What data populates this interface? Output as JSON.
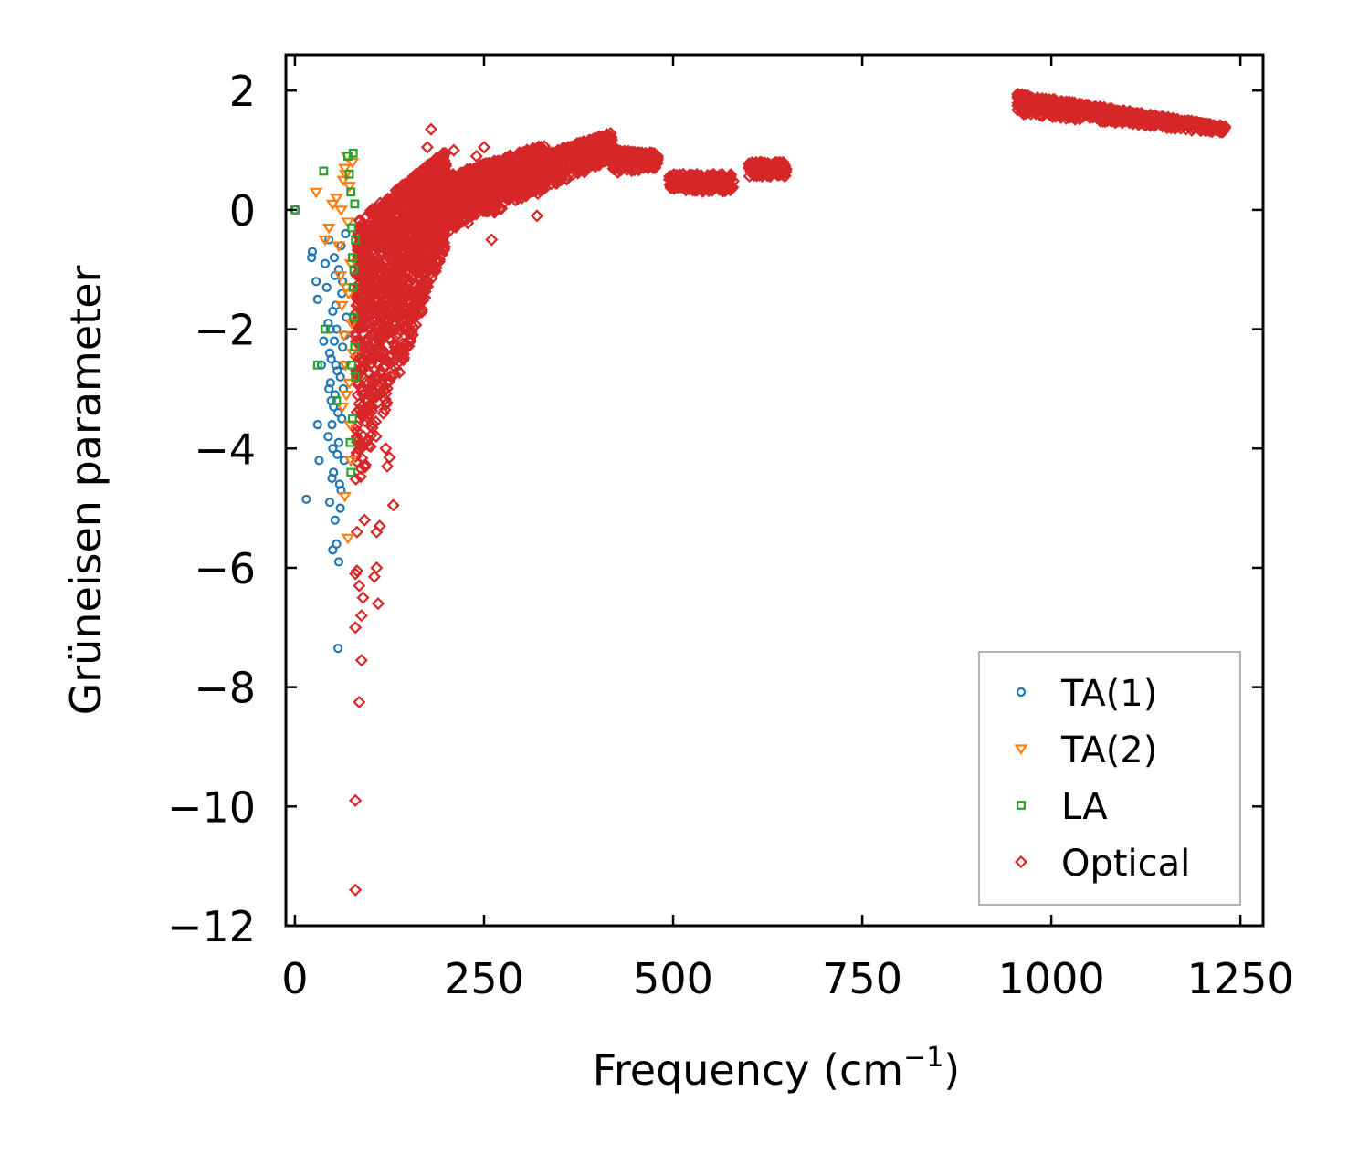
{
  "chart_data": {
    "type": "scatter",
    "title": "",
    "xlabel": "Frequency (cm",
    "xlabel_superscript": "−1",
    "xlabel_suffix": ")",
    "ylabel": "Grüneisen parameter",
    "xlim": [
      -12,
      1280
    ],
    "ylim": [
      -12.0,
      2.6
    ],
    "x_ticks": [
      0,
      250,
      500,
      750,
      1000,
      1250
    ],
    "x_tick_labels": [
      "0",
      "250",
      "500",
      "750",
      "1000",
      "1250"
    ],
    "y_ticks": [
      2,
      0,
      -2,
      -4,
      -6,
      -8,
      -10,
      -12
    ],
    "y_tick_labels": [
      "2",
      "0",
      "−2",
      "−4",
      "−6",
      "−8",
      "−10",
      "−12"
    ],
    "grid": false,
    "legend_position": "bottom-right",
    "series": [
      {
        "name": "TA(1)",
        "color": "#1f77b4",
        "marker": "circle",
        "points": [
          [
            0,
            0
          ],
          [
            22,
            -0.8
          ],
          [
            23,
            -0.7
          ],
          [
            28,
            -1.2
          ],
          [
            30,
            -1.5
          ],
          [
            35,
            -2.6
          ],
          [
            38,
            -2.2
          ],
          [
            40,
            -0.9
          ],
          [
            42,
            -1.3
          ],
          [
            44,
            -1.9
          ],
          [
            45,
            -0.5
          ],
          [
            46,
            -2.4
          ],
          [
            47,
            -2.9
          ],
          [
            48,
            -3.2
          ],
          [
            49,
            -3.6
          ],
          [
            50,
            -4.0
          ],
          [
            51,
            -4.4
          ],
          [
            52,
            -0.8
          ],
          [
            53,
            -1.1
          ],
          [
            54,
            -1.6
          ],
          [
            55,
            -2.0
          ],
          [
            56,
            -2.7
          ],
          [
            57,
            -3.4
          ],
          [
            58,
            -3.9
          ],
          [
            59,
            -4.6
          ],
          [
            60,
            -5.0
          ],
          [
            61,
            -0.6
          ],
          [
            62,
            -1.4
          ],
          [
            63,
            -2.3
          ],
          [
            64,
            -3.0
          ],
          [
            65,
            -4.2
          ],
          [
            66,
            -2.1
          ],
          [
            67,
            -0.4
          ],
          [
            68,
            -1.8
          ],
          [
            44,
            -3.8
          ],
          [
            46,
            -4.9
          ],
          [
            50,
            -5.7
          ],
          [
            55,
            -5.6
          ],
          [
            58,
            -5.9
          ],
          [
            57,
            -7.35
          ],
          [
            30,
            -3.6
          ],
          [
            32,
            -4.2
          ],
          [
            15,
            -4.85
          ],
          [
            48,
            -2.5
          ],
          [
            52,
            -2.2
          ],
          [
            53,
            -3.1
          ],
          [
            56,
            -4.1
          ],
          [
            60,
            -2.8
          ],
          [
            62,
            -3.5
          ],
          [
            58,
            -1.0
          ],
          [
            50,
            -1.7
          ],
          [
            47,
            -2.0
          ],
          [
            54,
            -2.6
          ],
          [
            51,
            -3.3
          ],
          [
            49,
            -4.5
          ],
          [
            53,
            -5.2
          ],
          [
            61,
            -4.7
          ],
          [
            45,
            -3.0
          ],
          [
            63,
            -1.2
          ],
          [
            64,
            -2.6
          ]
        ]
      },
      {
        "name": "TA(2)",
        "color": "#ff7f0e",
        "marker": "triangle-down",
        "points": [
          [
            28,
            0.3
          ],
          [
            40,
            -0.5
          ],
          [
            45,
            -0.3
          ],
          [
            50,
            0.1
          ],
          [
            55,
            0.2
          ],
          [
            58,
            -0.6
          ],
          [
            60,
            -1.1
          ],
          [
            62,
            -1.6
          ],
          [
            64,
            0.5
          ],
          [
            65,
            -2.1
          ],
          [
            66,
            0.7
          ],
          [
            67,
            -2.6
          ],
          [
            68,
            -3.1
          ],
          [
            69,
            0.9
          ],
          [
            70,
            -0.2
          ],
          [
            71,
            -1.4
          ],
          [
            72,
            0.4
          ],
          [
            73,
            -3.6
          ],
          [
            74,
            -4.2
          ],
          [
            75,
            -1.9
          ],
          [
            76,
            0.8
          ],
          [
            77,
            -2.4
          ],
          [
            66,
            -4.8
          ],
          [
            70,
            -5.5
          ],
          [
            63,
            -3.3
          ],
          [
            68,
            -1.3
          ],
          [
            72,
            -2.9
          ],
          [
            61,
            0.0
          ],
          [
            74,
            -0.9
          ],
          [
            67,
            0.6
          ]
        ]
      },
      {
        "name": "LA",
        "color": "#2ca02c",
        "marker": "square",
        "points": [
          [
            0,
            0
          ],
          [
            38,
            0.65
          ],
          [
            40,
            -2.0
          ],
          [
            30,
            -2.6
          ],
          [
            55,
            -3.2
          ],
          [
            70,
            0.9
          ],
          [
            72,
            0.6
          ],
          [
            74,
            0.3
          ],
          [
            75,
            -0.3
          ],
          [
            76,
            -0.8
          ],
          [
            77,
            -1.3
          ],
          [
            78,
            -1.8
          ],
          [
            79,
            -2.3
          ],
          [
            80,
            -2.8
          ],
          [
            76,
            -3.5
          ],
          [
            74,
            -4.4
          ],
          [
            73,
            -3.9
          ],
          [
            77,
            0.95
          ],
          [
            79,
            0.1
          ],
          [
            78,
            -1.0
          ],
          [
            75,
            -2.6
          ],
          [
            80,
            -0.5
          ]
        ]
      },
      {
        "name": "Optical",
        "color": "#d62728",
        "marker": "diamond",
        "clusters": [
          {
            "x_range": [
              80,
              200
            ],
            "y_top": [
              -0.2,
              1.0
            ],
            "y_bottom": [
              -4.8,
              -0.6
            ],
            "count": 1500
          },
          {
            "x_range": [
              160,
              330
            ],
            "y_top": [
              0.4,
              1.1
            ],
            "y_bottom": [
              -0.6,
              0.3
            ],
            "count": 1000
          },
          {
            "x_range": [
              320,
              420
            ],
            "y_top": [
              0.9,
              1.3
            ],
            "y_bottom": [
              0.3,
              0.8
            ],
            "count": 500
          },
          {
            "x_range": [
              420,
              480
            ],
            "y_top": [
              1.0,
              0.95
            ],
            "y_bottom": [
              0.6,
              0.7
            ],
            "count": 250
          },
          {
            "x_range": [
              495,
              580
            ],
            "y_top": [
              0.6,
              0.6
            ],
            "y_bottom": [
              0.3,
              0.3
            ],
            "count": 250
          },
          {
            "x_range": [
              600,
              650
            ],
            "y_top": [
              0.8,
              0.8
            ],
            "y_bottom": [
              0.55,
              0.55
            ],
            "count": 180
          },
          {
            "x_range": [
              955,
              1230
            ],
            "y_top": [
              1.95,
              1.4
            ],
            "y_bottom": [
              1.6,
              1.28
            ],
            "count": 700
          }
        ],
        "points": [
          [
            80,
            -11.4
          ],
          [
            80,
            -9.9
          ],
          [
            85,
            -8.25
          ],
          [
            88,
            -7.55
          ],
          [
            80,
            -7.0
          ],
          [
            88,
            -6.8
          ],
          [
            110,
            -6.6
          ],
          [
            90,
            -6.5
          ],
          [
            85,
            -6.3
          ],
          [
            105,
            -6.15
          ],
          [
            80,
            -6.1
          ],
          [
            108,
            -6.0
          ],
          [
            82,
            -6.05
          ],
          [
            130,
            -4.95
          ],
          [
            108,
            -5.4
          ],
          [
            112,
            -5.3
          ],
          [
            82,
            -5.4
          ],
          [
            92,
            -5.2
          ],
          [
            125,
            -4.15
          ],
          [
            122,
            -4.3
          ],
          [
            120,
            -4.0
          ],
          [
            180,
            1.35
          ],
          [
            175,
            1.05
          ],
          [
            210,
            1.0
          ],
          [
            250,
            1.05
          ],
          [
            240,
            0.9
          ],
          [
            160,
            0.3
          ],
          [
            130,
            0.2
          ],
          [
            150,
            0.1
          ],
          [
            270,
            0.5
          ],
          [
            260,
            -0.5
          ],
          [
            320,
            -0.1
          ],
          [
            300,
            0.2
          ]
        ]
      }
    ]
  },
  "legend": {
    "items": [
      {
        "label": "TA(1)",
        "color": "#1f77b4",
        "marker": "circle"
      },
      {
        "label": "TA(2)",
        "color": "#ff7f0e",
        "marker": "triangle-down"
      },
      {
        "label": "LA",
        "color": "#2ca02c",
        "marker": "square"
      },
      {
        "label": "Optical",
        "color": "#d62728",
        "marker": "diamond"
      }
    ]
  }
}
